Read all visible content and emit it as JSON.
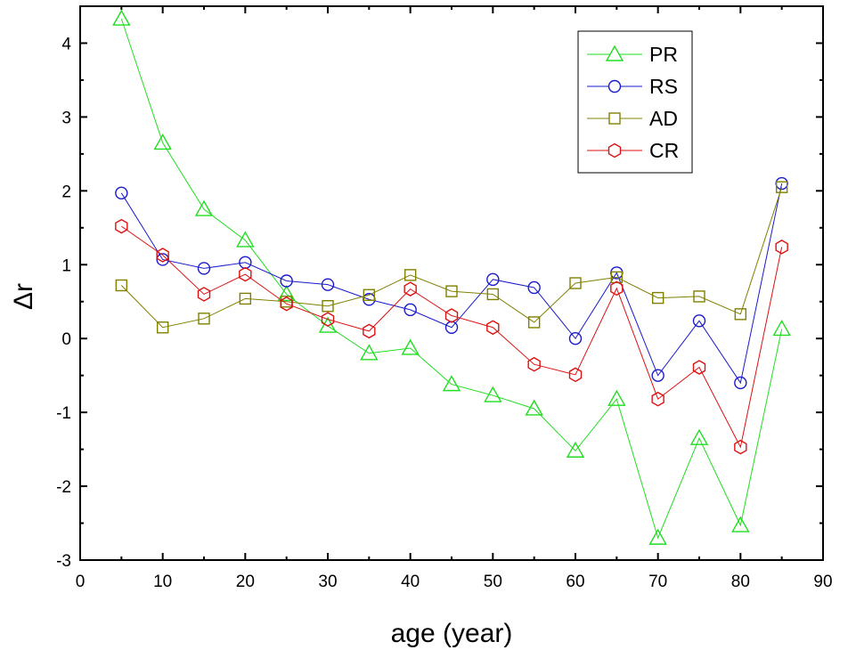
{
  "chart_data": {
    "type": "line",
    "title": "",
    "xlabel": "age (year)",
    "ylabel": "Δr",
    "xlim": [
      0,
      90
    ],
    "ylim": [
      -3,
      4.5
    ],
    "xticks": [
      0,
      10,
      20,
      30,
      40,
      50,
      60,
      70,
      80,
      90
    ],
    "yticks": [
      -3,
      -2,
      -1,
      0,
      1,
      2,
      3,
      4
    ],
    "xtick_labels": [
      "0",
      "10",
      "20",
      "30",
      "40",
      "50",
      "60",
      "70",
      "80",
      "90"
    ],
    "ytick_labels": [
      "-3",
      "-2",
      "-1",
      "0",
      "1",
      "2",
      "3",
      "4"
    ],
    "grid": false,
    "legend_position": "top-right",
    "x": [
      5,
      10,
      15,
      20,
      25,
      30,
      35,
      40,
      45,
      50,
      55,
      60,
      65,
      70,
      75,
      80,
      85
    ],
    "series": [
      {
        "name": "PR",
        "marker": "triangle",
        "color": "#22dd22",
        "values": [
          4.33,
          2.65,
          1.75,
          1.33,
          0.6,
          0.17,
          -0.2,
          -0.13,
          -0.62,
          -0.77,
          -0.95,
          -1.52,
          -0.82,
          -2.7,
          -1.35,
          -2.53,
          0.13
        ]
      },
      {
        "name": "RS",
        "marker": "circle",
        "color": "#1a1acc",
        "values": [
          1.97,
          1.07,
          0.95,
          1.03,
          0.78,
          0.73,
          0.53,
          0.39,
          0.15,
          0.8,
          0.69,
          0.0,
          0.89,
          -0.5,
          0.24,
          -0.6,
          2.1
        ]
      },
      {
        "name": "AD",
        "marker": "square",
        "color": "#808000",
        "values": [
          0.72,
          0.15,
          0.27,
          0.54,
          0.5,
          0.44,
          0.59,
          0.86,
          0.64,
          0.6,
          0.22,
          0.75,
          0.83,
          0.55,
          0.57,
          0.33,
          2.05
        ]
      },
      {
        "name": "CR",
        "marker": "hexagon",
        "color": "#dd1111",
        "values": [
          1.52,
          1.13,
          0.6,
          0.87,
          0.47,
          0.26,
          0.1,
          0.67,
          0.31,
          0.15,
          -0.35,
          -0.49,
          0.68,
          -0.82,
          -0.39,
          -1.47,
          1.24
        ]
      }
    ]
  }
}
